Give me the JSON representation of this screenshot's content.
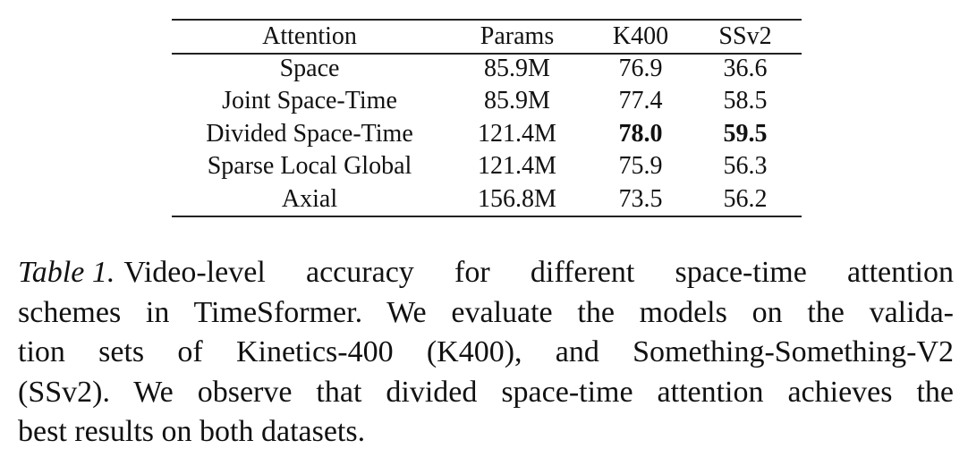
{
  "table": {
    "header": [
      "Attention",
      "Params",
      "K400",
      "SSv2"
    ],
    "rows": [
      [
        "Space",
        "85.9M",
        "76.9",
        "36.6"
      ],
      [
        "Joint Space-Time",
        "85.9M",
        "77.4",
        "58.5"
      ],
      [
        "Divided Space-Time",
        "121.4M",
        "78.0",
        "59.5"
      ],
      [
        "Sparse Local Global",
        "121.4M",
        "75.9",
        "56.3"
      ],
      [
        "Axial",
        "156.8M",
        "73.5",
        "56.2"
      ]
    ],
    "bold_cells": [
      [
        2,
        2
      ],
      [
        2,
        3
      ]
    ]
  },
  "caption": {
    "label": "Table 1.",
    "lines": [
      "Video-level accuracy for different space-time attention",
      "schemes in TimeSformer. We evaluate the models on the valida-",
      "tion sets of Kinetics-400 (K400), and Something-Something-V2",
      "(SSv2). We observe that divided space-time attention achieves the",
      "best results on both datasets."
    ]
  }
}
